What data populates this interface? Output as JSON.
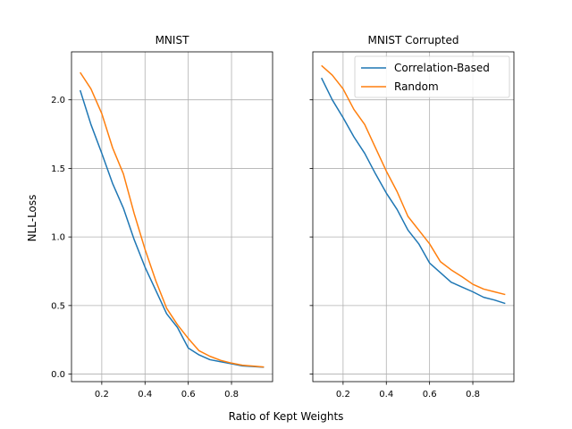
{
  "figure": {
    "xlabel": "Ratio of Kept Weights",
    "ylabel": "NLL-Loss"
  },
  "chart_data": [
    {
      "type": "line",
      "title": "MNIST",
      "xlabel": "Ratio of Kept Weights",
      "ylabel": "NLL-Loss",
      "xlim": [
        0.06,
        0.99
      ],
      "ylim": [
        -0.055,
        2.35
      ],
      "xticks": [
        0.2,
        0.4,
        0.6,
        0.8
      ],
      "xtick_labels": [
        "0.2",
        "0.4",
        "0.6",
        "0.8"
      ],
      "yticks": [
        0.0,
        0.5,
        1.0,
        1.5,
        2.0
      ],
      "ytick_labels": [
        "0.0",
        "0.5",
        "1.0",
        "1.5",
        "2.0"
      ],
      "grid": true,
      "series": [
        {
          "name": "Correlation-Based",
          "color": "#1f77b4",
          "x": [
            0.1,
            0.15,
            0.2,
            0.25,
            0.3,
            0.35,
            0.4,
            0.45,
            0.5,
            0.55,
            0.6,
            0.65,
            0.7,
            0.75,
            0.8,
            0.85,
            0.9,
            0.95
          ],
          "y": [
            2.07,
            1.82,
            1.61,
            1.39,
            1.21,
            0.98,
            0.78,
            0.61,
            0.44,
            0.34,
            0.19,
            0.14,
            0.105,
            0.09,
            0.075,
            0.06,
            0.055,
            0.05
          ]
        },
        {
          "name": "Random",
          "color": "#ff7f0e",
          "x": [
            0.1,
            0.15,
            0.2,
            0.25,
            0.3,
            0.35,
            0.4,
            0.45,
            0.5,
            0.55,
            0.6,
            0.65,
            0.7,
            0.75,
            0.8,
            0.85,
            0.9,
            0.95
          ],
          "y": [
            2.2,
            2.08,
            1.9,
            1.65,
            1.46,
            1.17,
            0.91,
            0.68,
            0.48,
            0.36,
            0.26,
            0.17,
            0.13,
            0.1,
            0.08,
            0.065,
            0.058,
            0.052
          ]
        }
      ]
    },
    {
      "type": "line",
      "title": "MNIST Corrupted",
      "xlabel": "Ratio of Kept Weights",
      "ylabel": "NLL-Loss",
      "xlim": [
        0.06,
        0.99
      ],
      "ylim": [
        -0.055,
        2.35
      ],
      "xticks": [
        0.2,
        0.4,
        0.6,
        0.8
      ],
      "xtick_labels": [
        "0.2",
        "0.4",
        "0.6",
        "0.8"
      ],
      "yticks": [
        0.0,
        0.5,
        1.0,
        1.5,
        2.0
      ],
      "ytick_labels": [
        "",
        "",
        "",
        "",
        ""
      ],
      "grid": true,
      "legend": "upper-right",
      "series": [
        {
          "name": "Correlation-Based",
          "color": "#1f77b4",
          "x": [
            0.1,
            0.15,
            0.2,
            0.25,
            0.3,
            0.35,
            0.4,
            0.45,
            0.5,
            0.55,
            0.6,
            0.65,
            0.7,
            0.75,
            0.8,
            0.85,
            0.9,
            0.95
          ],
          "y": [
            2.16,
            2.0,
            1.87,
            1.73,
            1.61,
            1.46,
            1.32,
            1.2,
            1.05,
            0.95,
            0.81,
            0.74,
            0.67,
            0.635,
            0.6,
            0.56,
            0.54,
            0.515
          ]
        },
        {
          "name": "Random",
          "color": "#ff7f0e",
          "x": [
            0.1,
            0.15,
            0.2,
            0.25,
            0.3,
            0.35,
            0.4,
            0.45,
            0.5,
            0.55,
            0.6,
            0.65,
            0.7,
            0.75,
            0.8,
            0.85,
            0.9,
            0.95
          ],
          "y": [
            2.25,
            2.18,
            2.08,
            1.93,
            1.82,
            1.65,
            1.48,
            1.33,
            1.15,
            1.05,
            0.95,
            0.82,
            0.76,
            0.71,
            0.655,
            0.62,
            0.6,
            0.58
          ]
        }
      ]
    }
  ]
}
